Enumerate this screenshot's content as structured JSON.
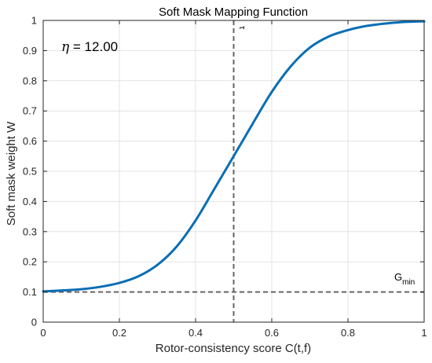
{
  "chart_data": {
    "type": "line",
    "title": "Soft Mask Mapping Function",
    "xlabel": "Rotor-consistency score C(t,f)",
    "ylabel": "Soft mask weight W",
    "xlim": [
      0,
      1
    ],
    "ylim": [
      0,
      1
    ],
    "xticks": [
      "0",
      "0.2",
      "0.4",
      "0.6",
      "0.8",
      "1"
    ],
    "yticks": [
      "0",
      "0.1",
      "0.2",
      "0.3",
      "0.4",
      "0.5",
      "0.6",
      "0.7",
      "0.8",
      "0.9",
      "1"
    ],
    "grid": true,
    "series": [
      {
        "type": "line",
        "color": "#0a6eb4",
        "x": [
          0,
          0.05,
          0.1,
          0.15,
          0.2,
          0.25,
          0.3,
          0.35,
          0.4,
          0.45,
          0.5,
          0.55,
          0.6,
          0.65,
          0.7,
          0.75,
          0.8,
          0.85,
          0.9,
          0.95,
          1
        ],
        "y": [
          0.102,
          0.105,
          0.109,
          0.117,
          0.13,
          0.152,
          0.19,
          0.25,
          0.337,
          0.443,
          0.55,
          0.658,
          0.763,
          0.848,
          0.91,
          0.947,
          0.968,
          0.982,
          0.99,
          0.995,
          0.997
        ]
      }
    ],
    "reference_lines": [
      {
        "orientation": "vertical",
        "value": 0.5,
        "style": "dashed",
        "color": "#666666",
        "label": "τ"
      },
      {
        "orientation": "horizontal",
        "value": 0.1,
        "style": "dashed",
        "color": "#666666",
        "label": "G",
        "label_sub": "min"
      }
    ],
    "annotation": {
      "symbol": "η",
      "text": " = 12.00"
    }
  }
}
